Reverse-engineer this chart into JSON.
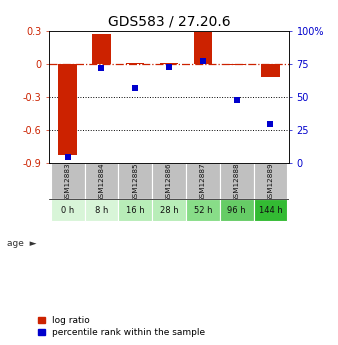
{
  "title": "GDS583 / 27.20.6",
  "samples": [
    "GSM12883",
    "GSM12884",
    "GSM12885",
    "GSM12886",
    "GSM12887",
    "GSM12888",
    "GSM12889"
  ],
  "ages": [
    "0 h",
    "8 h",
    "16 h",
    "28 h",
    "52 h",
    "96 h",
    "144 h"
  ],
  "log_ratio": [
    -0.82,
    0.27,
    0.01,
    0.01,
    0.29,
    -0.01,
    -0.12
  ],
  "percentile_rank": [
    5,
    72,
    57,
    73,
    77,
    48,
    30
  ],
  "ylim_left": [
    -0.9,
    0.3
  ],
  "ylim_right": [
    0,
    100
  ],
  "yticks_left": [
    0.3,
    0.0,
    -0.3,
    -0.6,
    -0.9
  ],
  "yticks_right": [
    100,
    75,
    50,
    25,
    0
  ],
  "ytick_labels_right": [
    "100%",
    "75",
    "50",
    "25",
    "0"
  ],
  "bar_color": "#cc2200",
  "dot_color": "#0000cc",
  "hline_color": "#cc2200",
  "dotted_line_color": "#000000",
  "age_bg_colors": [
    "#d8f5d8",
    "#d8f5d8",
    "#b8edb8",
    "#b8edb8",
    "#88dd88",
    "#66cc66",
    "#33bb33"
  ],
  "sample_bg_color": "#c0c0c0",
  "title_fontsize": 10,
  "tick_fontsize": 7,
  "bar_width": 0.55
}
